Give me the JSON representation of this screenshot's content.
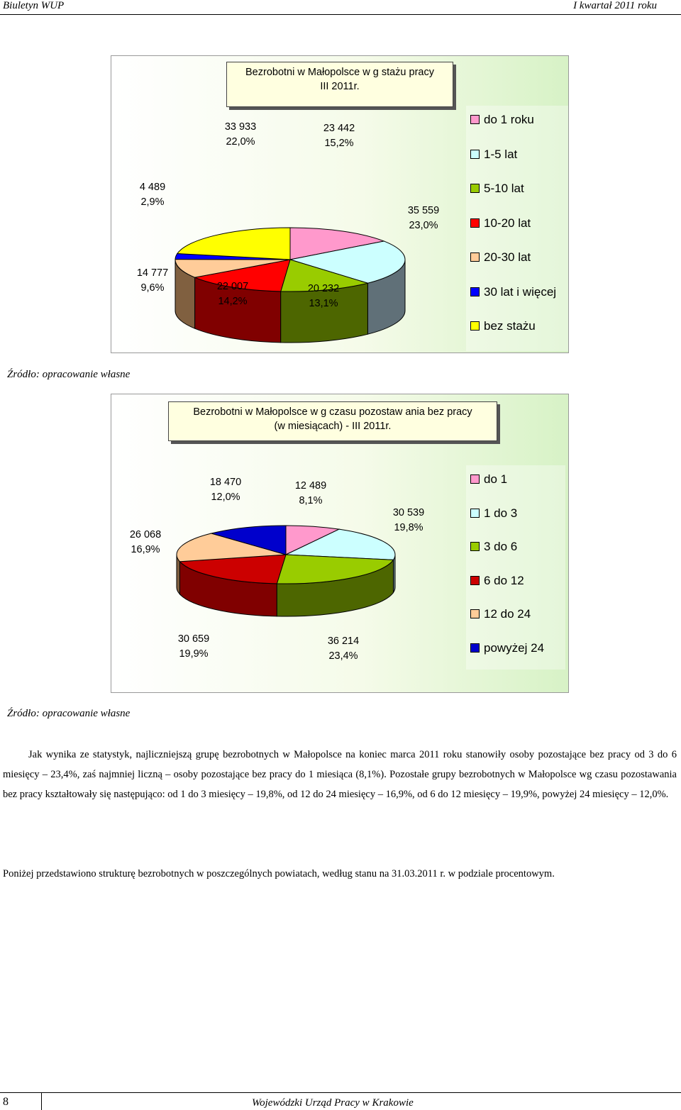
{
  "header": {
    "left": "Biuletyn WUP",
    "right": "I  kwartał 2011 roku"
  },
  "chart_data": [
    {
      "type": "pie",
      "title": "Bezrobotni w  Małopolsce w g stażu pracy\nIII 2011r.",
      "categories": [
        "do 1 roku",
        "1-5 lat",
        "5-10 lat",
        "10-20 lat",
        "20-30 lat",
        "30 lat i więcej",
        "bez stażu"
      ],
      "values": [
        23442,
        35559,
        20232,
        22007,
        14777,
        4489,
        33933
      ],
      "percents": [
        "15,2%",
        "23,0%",
        "13,1%",
        "14,2%",
        "9,6%",
        "2,9%",
        "22,0%"
      ],
      "value_labels": [
        "23 442",
        "35 559",
        "20 232",
        "22 007",
        "14 777",
        "4 489",
        "33 933"
      ],
      "colors": [
        "#ff99cc",
        "#ccffff",
        "#99cc00",
        "#ff0000",
        "#ffcc99",
        "#0000ff",
        "#ffff00"
      ],
      "side_colors": [
        "#808080",
        "#607078",
        "#4d6600",
        "#800000",
        "#806040",
        "#000080",
        "#808000"
      ],
      "legend_position": "right"
    },
    {
      "type": "pie",
      "title": "Bezrobotni w  Małopolsce w g czasu pozostaw ania bez pracy\n(w  miesiącach) - III 2011r.",
      "categories": [
        "do 1",
        "1 do 3",
        "3 do 6",
        "6 do 12",
        "12 do 24",
        "powyżej 24"
      ],
      "values": [
        12489,
        30539,
        36214,
        30659,
        26068,
        18470
      ],
      "percents": [
        "8,1%",
        "19,8%",
        "23,4%",
        "19,9%",
        "16,9%",
        "12,0%"
      ],
      "value_labels": [
        "12 489",
        "30 539",
        "36 214",
        "30 659",
        "26 068",
        "18 470"
      ],
      "colors": [
        "#ff99cc",
        "#ccffff",
        "#99cc00",
        "#cc0000",
        "#ffcc99",
        "#0000cc"
      ],
      "side_colors": [
        "#804c66",
        "#667f7f",
        "#4d6600",
        "#800000",
        "#806040",
        "#000066"
      ],
      "legend_position": "right"
    }
  ],
  "sources": [
    "Źródło: opracowanie własne",
    "Źródło: opracowanie własne"
  ],
  "paragraphs": [
    "Jak wynika ze statystyk, najliczniejszą grupę bezrobotnych w Małopolsce na koniec marca 2011 roku stanowiły osoby pozostające bez pracy od 3 do 6 miesięcy – 23,4%, zaś najmniej liczną – osoby pozostające bez  pracy do 1 miesiąca  (8,1%). Pozostałe grupy bezrobotnych w Małopolsce wg czasu pozostawania bez pracy kształtowały się następująco: od 1 do 3 miesięcy – 19,8%, od 12 do 24 miesięcy – 16,9%, od 6 do 12 miesięcy – 19,9%, powyżej 24 miesięcy – 12,0%.",
    "Poniżej przedstawiono strukturę bezrobotnych w poszczególnych powiatach, według stanu na  31.03.2011 r. w podziale procentowym."
  ],
  "footer": {
    "page": "8",
    "org": "Wojewódzki Urząd Pracy w Krakowie"
  }
}
